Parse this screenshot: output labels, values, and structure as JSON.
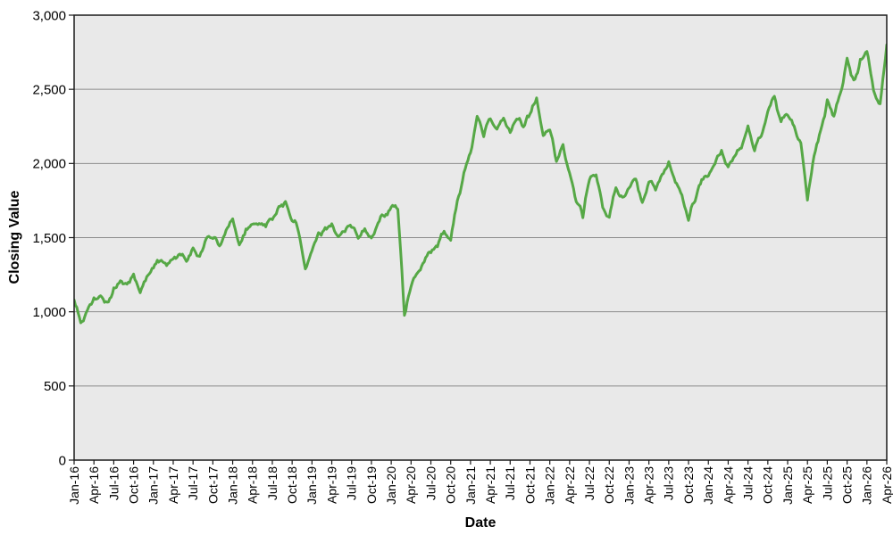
{
  "chart_data": {
    "type": "line",
    "title": "",
    "xlabel": "Date",
    "ylabel": "Closing Value",
    "ylim": [
      0,
      3000
    ],
    "grid": "horizontal",
    "legend": "none",
    "y_ticks": [
      0,
      500,
      1000,
      1500,
      2000,
      2500,
      3000
    ],
    "y_tick_labels": [
      "0",
      "500",
      "1,000",
      "1,500",
      "2,000",
      "2,500",
      "3,000"
    ],
    "x_tick_every_months": 3,
    "x_tick_labels": [
      "Jan-16",
      "Apr-16",
      "Jul-16",
      "Oct-16",
      "Jan-17",
      "Apr-17",
      "Jul-17",
      "Oct-17",
      "Jan-18",
      "Apr-18",
      "Jul-18",
      "Oct-18",
      "Jan-19",
      "Apr-19",
      "Jul-19",
      "Oct-19",
      "Jan-20",
      "Apr-20",
      "Jul-20",
      "Oct-20",
      "Jan-21",
      "Apr-21",
      "Jul-21",
      "Oct-21",
      "Jan-22",
      "Apr-22",
      "Jul-22",
      "Oct-22",
      "Jan-23",
      "Apr-23",
      "Jul-23",
      "Oct-23",
      "Jan-24",
      "Apr-24",
      "Jul-24",
      "Oct-24",
      "Jan-25",
      "Apr-25",
      "Jul-25",
      "Oct-25",
      "Jan-26",
      "Apr-26"
    ],
    "series": [
      {
        "name": "Closing Value",
        "color": "#56a846",
        "x_unit": "months since Jan-16",
        "monthly_values": [
          1080,
          930,
          1000,
          1070,
          1120,
          1060,
          1140,
          1200,
          1180,
          1230,
          1140,
          1230,
          1310,
          1350,
          1330,
          1350,
          1400,
          1360,
          1420,
          1350,
          1480,
          1500,
          1460,
          1560,
          1610,
          1470,
          1550,
          1570,
          1600,
          1580,
          1640,
          1700,
          1730,
          1620,
          1560,
          1270,
          1430,
          1520,
          1560,
          1610,
          1490,
          1560,
          1590,
          1500,
          1560,
          1490,
          1600,
          1660,
          1690,
          1700,
          980,
          1170,
          1260,
          1350,
          1400,
          1450,
          1530,
          1500,
          1750,
          1920,
          2080,
          2300,
          2200,
          2310,
          2220,
          2300,
          2200,
          2320,
          2250,
          2330,
          2450,
          2200,
          2250,
          2000,
          2110,
          1930,
          1760,
          1650,
          1900,
          1910,
          1700,
          1640,
          1840,
          1780,
          1840,
          1910,
          1710,
          1880,
          1840,
          1930,
          1990,
          1870,
          1790,
          1630,
          1760,
          1890,
          1930,
          2010,
          2090,
          1960,
          2050,
          2130,
          2240,
          2090,
          2200,
          2330,
          2440,
          2290,
          2330,
          2270,
          2120,
          1770,
          2060,
          2230,
          2400,
          2330,
          2480,
          2700,
          2540,
          2680,
          2760,
          2480,
          2400,
          2800
        ]
      }
    ],
    "colors": {
      "plot_bg": "#e9e9e9",
      "grid": "#8c8c8c",
      "border": "#1a1a1a",
      "tick": "#1a1a1a",
      "text": "#000000",
      "outer_bg": "#ffffff"
    }
  }
}
